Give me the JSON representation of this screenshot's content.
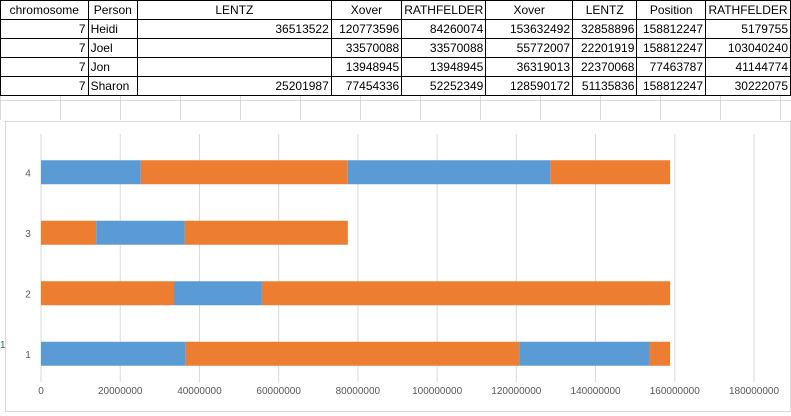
{
  "sheet": {
    "headers": [
      "chromosome",
      "Person",
      "LENTZ",
      "Xover",
      "RATHFELDER",
      "Xover",
      "LENTZ",
      "Position",
      "RATHFELDER"
    ],
    "rows": [
      [
        "7",
        "Heidi",
        "36513522",
        "120773596",
        "84260074",
        "153632492",
        "32858896",
        "158812247",
        "5179755"
      ],
      [
        "7",
        "Joel",
        "",
        "33570088",
        "33570088",
        "55772007",
        "22201919",
        "158812247",
        "103040240"
      ],
      [
        "7",
        "Jon",
        "",
        "13948945",
        "13948945",
        "36319013",
        "22370068",
        "77463787",
        "41144774"
      ],
      [
        "7",
        "Sharon",
        "25201987",
        "77454336",
        "52252349",
        "128590172",
        "51135836",
        "158812247",
        "30222075"
      ]
    ]
  },
  "row_marker": "1",
  "colors": {
    "blue": "#5b9bd5",
    "orange": "#ed7d31",
    "grid": "#d9d9d9",
    "axis_text": "#595959"
  },
  "chart_data": {
    "type": "bar",
    "orientation": "horizontal",
    "stacked": true,
    "categories": [
      "1",
      "2",
      "3",
      "4"
    ],
    "xlim": [
      0,
      180000000
    ],
    "x_ticks": [
      "0",
      "20000000",
      "40000000",
      "60000000",
      "80000000",
      "100000000",
      "120000000",
      "140000000",
      "160000000",
      "180000000"
    ],
    "grid": true,
    "legend": "none",
    "series": [
      {
        "color": "#5b9bd5",
        "values": [
          36513522,
          0,
          0,
          25201987
        ]
      },
      {
        "color": "#ed7d31",
        "values": [
          84260074,
          33570088,
          13948945,
          52252349
        ]
      },
      {
        "color": "#5b9bd5",
        "values": [
          32858896,
          22201919,
          22370068,
          51135836
        ]
      },
      {
        "color": "#ed7d31",
        "values": [
          5179755,
          103040240,
          41144774,
          30222075
        ]
      }
    ]
  }
}
